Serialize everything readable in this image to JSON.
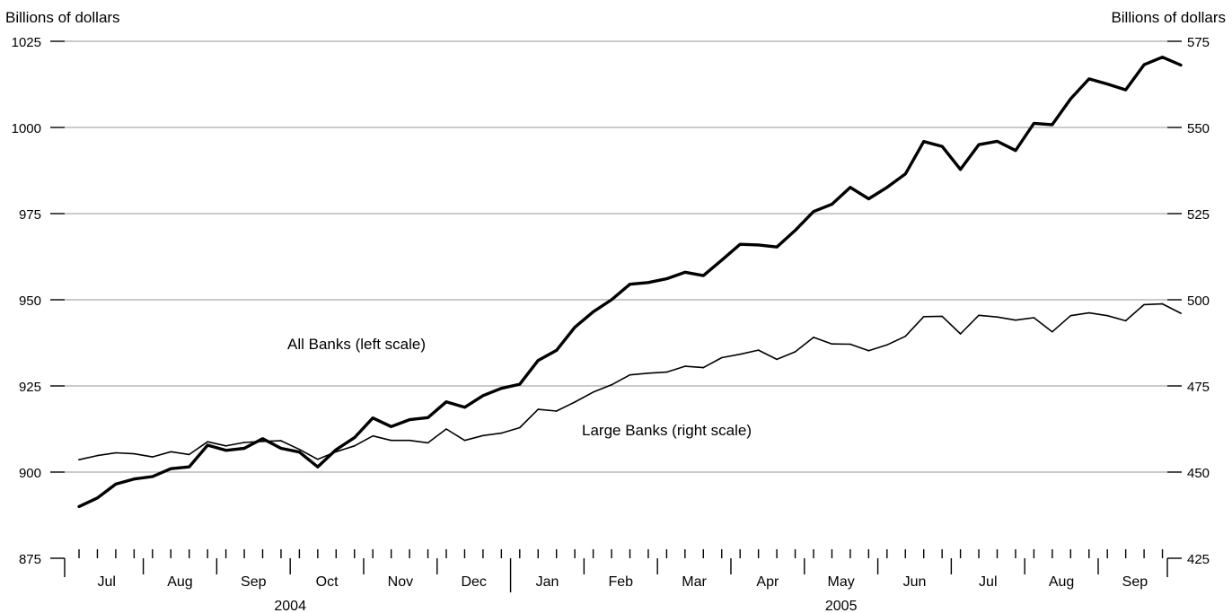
{
  "chart_data": {
    "type": "line",
    "ylabel_left": "Billions of dollars",
    "ylabel_right": "Billions of dollars",
    "ylim_left": [
      875,
      1025
    ],
    "ylim_right": [
      425,
      575
    ],
    "yticks_left": [
      875,
      900,
      925,
      950,
      975,
      1000,
      1025
    ],
    "yticks_right": [
      425,
      450,
      475,
      500,
      525,
      550,
      575
    ],
    "grid": true,
    "frequency": "weekly",
    "months": [
      {
        "label": "Jul",
        "weeks": 4
      },
      {
        "label": "Aug",
        "weeks": 4
      },
      {
        "label": "Sep",
        "weeks": 4
      },
      {
        "label": "Oct",
        "weeks": 4
      },
      {
        "label": "Nov",
        "weeks": 4
      },
      {
        "label": "Dec",
        "weeks": 4
      },
      {
        "label": "Jan",
        "weeks": 4
      },
      {
        "label": "Feb",
        "weeks": 4
      },
      {
        "label": "Mar",
        "weeks": 4
      },
      {
        "label": "Apr",
        "weeks": 4
      },
      {
        "label": "May",
        "weeks": 4
      },
      {
        "label": "Jun",
        "weeks": 4
      },
      {
        "label": "Jul",
        "weeks": 4
      },
      {
        "label": "Aug",
        "weeks": 4
      },
      {
        "label": "Sep",
        "weeks": 4
      }
    ],
    "years": [
      {
        "label": "2004",
        "first_month": 0,
        "last_month": 5
      },
      {
        "label": "2005",
        "first_month": 6,
        "last_month": 14
      }
    ],
    "series": [
      {
        "name": "All Banks (left scale)",
        "axis": "left",
        "style": "thick",
        "values": [
          890,
          892.5,
          896.5,
          898,
          898.7,
          901,
          901.5,
          907.8,
          906.3,
          906.9,
          909.7,
          906.9,
          905.8,
          901.5,
          906.5,
          910,
          915.7,
          913.2,
          915.2,
          915.8,
          920.4,
          918.8,
          922.2,
          924.3,
          925.5,
          932.4,
          935.3,
          942,
          946.5,
          950,
          954.5,
          955,
          956.1,
          958,
          957,
          961.5,
          966.1,
          965.9,
          965.3,
          970.1,
          975.6,
          977.7,
          982.6,
          979.3,
          982.6,
          986.5,
          995.9,
          994.5,
          987.8,
          995,
          996,
          993.3,
          1001.2,
          1000.8,
          1008.3,
          1014.1,
          1012.6,
          1010.9,
          1018.2,
          1020.4,
          1018.1
        ]
      },
      {
        "name": "Large Banks (right scale)",
        "axis": "right",
        "style": "thin",
        "values": [
          453.6,
          454.8,
          455.6,
          455.3,
          454.4,
          455.9,
          455.1,
          458.8,
          457.6,
          458.6,
          458.9,
          459.1,
          456.6,
          453.7,
          455.9,
          457.6,
          460.5,
          459.2,
          459.2,
          458.5,
          462.5,
          459.2,
          460.6,
          461.3,
          462.9,
          468.2,
          467.7,
          470.3,
          473.2,
          475.3,
          478.2,
          478.7,
          479,
          480.7,
          480.3,
          483.2,
          484.2,
          485.4,
          482.7,
          484.9,
          489.1,
          487.2,
          487.1,
          485.2,
          486.9,
          489.4,
          495.1,
          495.2,
          490.1,
          495.5,
          495,
          494.1,
          494.8,
          490.7,
          495.4,
          496.2,
          495.4,
          493.9,
          498.6,
          498.8,
          496.1
        ]
      }
    ],
    "annotations": [
      {
        "text": "All Banks (left scale)",
        "series": 0
      },
      {
        "text": "Large Banks (right scale)",
        "series": 1
      }
    ]
  }
}
